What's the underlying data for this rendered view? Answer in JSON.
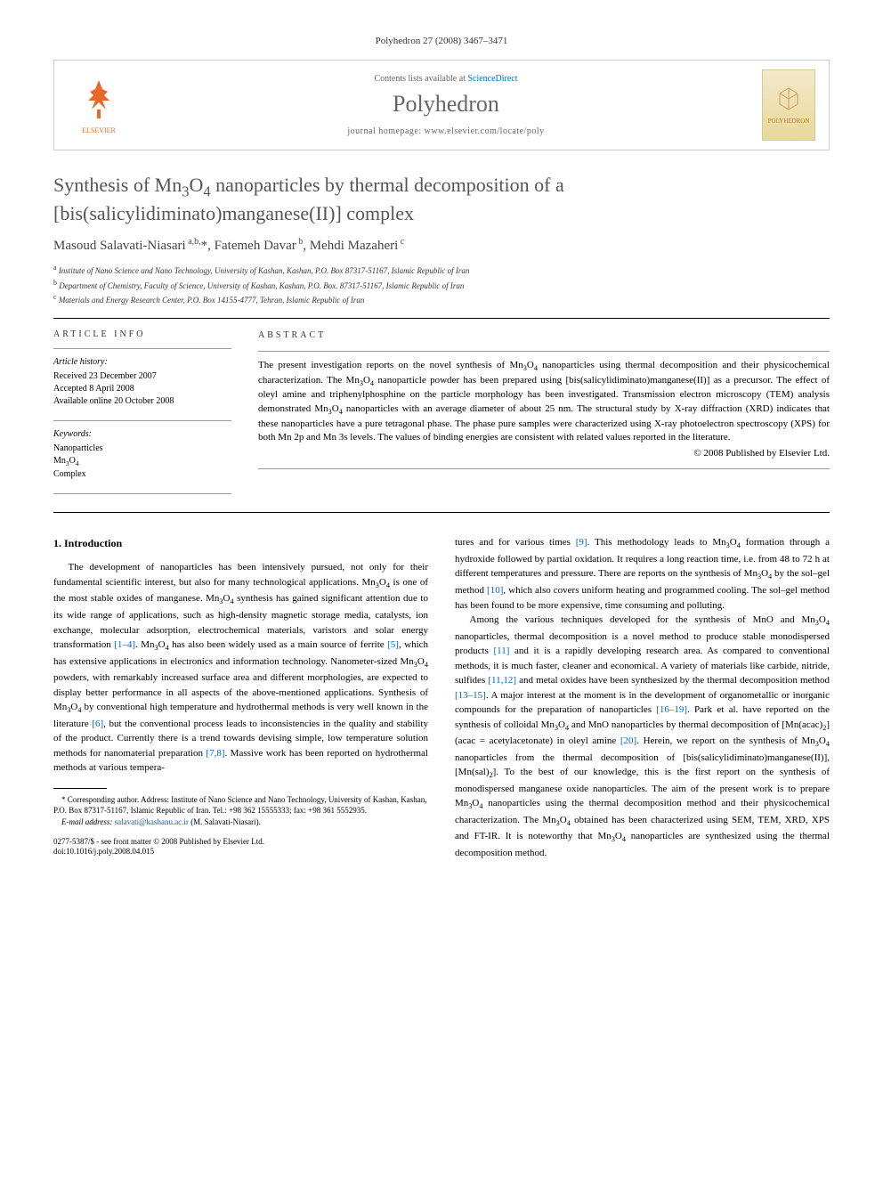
{
  "journal_ref": "Polyhedron 27 (2008) 3467–3471",
  "header": {
    "contents_prefix": "Contents lists available at ",
    "contents_link": "ScienceDirect",
    "journal_title": "Polyhedron",
    "homepage_prefix": "journal homepage: ",
    "homepage_url": "www.elsevier.com/locate/poly",
    "elsevier_label": "ELSEVIER",
    "cover_label": "POLYHEDRON"
  },
  "title": "Synthesis of Mn₃O₄ nanoparticles by thermal decomposition of a [bis(salicylidiminato)manganese(II)] complex",
  "authors_html": "Masoud Salavati-Niasari <sup>a,b,*</sup>, Fatemeh Davar <sup>b</sup>, Mehdi Mazaheri <sup>c</sup>",
  "affiliations": [
    "a|Institute of Nano Science and Nano Technology, University of Kashan, Kashan, P.O. Box 87317-51167, Islamic Republic of Iran",
    "b|Department of Chemistry, Faculty of Science, University of Kashan, Kashan, P.O. Box. 87317-51167, Islamic Republic of Iran",
    "c|Materials and Energy Research Center, P.O. Box 14155-4777, Tehran, Islamic Republic of Iran"
  ],
  "article_info": {
    "heading": "ARTICLE INFO",
    "history_label": "Article history:",
    "history": [
      "Received 23 December 2007",
      "Accepted 8 April 2008",
      "Available online 20 October 2008"
    ],
    "keywords_label": "Keywords:",
    "keywords": [
      "Nanoparticles",
      "Mn₃O₄",
      "Complex"
    ]
  },
  "abstract": {
    "heading": "ABSTRACT",
    "text": "The present investigation reports on the novel synthesis of Mn₃O₄ nanoparticles using thermal decomposition and their physicochemical characterization. The Mn₃O₄ nanoparticle powder has been prepared using [bis(salicylidiminato)manganese(II)] as a precursor. The effect of oleyl amine and triphenylphosphine on the particle morphology has been investigated. Transmission electron microscopy (TEM) analysis demonstrated Mn₃O₄ nanoparticles with an average diameter of about 25 nm. The structural study by X-ray diffraction (XRD) indicates that these nanoparticles have a pure tetragonal phase. The phase pure samples were characterized using X-ray photoelectron spectroscopy (XPS) for both Mn 2p and Mn 3s levels. The values of binding energies are consistent with related values reported in the literature.",
    "copyright": "© 2008 Published by Elsevier Ltd."
  },
  "section1": {
    "heading": "1. Introduction",
    "p1": "The development of nanoparticles has been intensively pursued, not only for their fundamental scientific interest, but also for many technological applications. Mn₃O₄ is one of the most stable oxides of manganese. Mn₃O₄ synthesis has gained significant attention due to its wide range of applications, such as high-density magnetic storage media, catalysts, ion exchange, molecular adsorption, electrochemical materials, varistors and solar energy transformation [1–4]. Mn₃O₄ has also been widely used as a main source of ferrite [5], which has extensive applications in electronics and information technology. Nanometer-sized Mn₃O₄ powders, with remarkably increased surface area and different morphologies, are expected to display better performance in all aspects of the above-mentioned applications. Synthesis of Mn₃O₄ by conventional high temperature and hydrothermal methods is very well known in the literature [6], but the conventional process leads to inconsistencies in the quality and stability of the product. Currently there is a trend towards devising simple, low temperature solution methods for nanomaterial preparation [7,8]. Massive work has been reported on hydrothermal methods at various tempera",
    "p1_cont": "tures and for various times [9]. This methodology leads to Mn₃O₄ formation through a hydroxide followed by partial oxidation. It requires a long reaction time, i.e. from 48 to 72 h at different temperatures and pressure. There are reports on the synthesis of Mn₃O₄ by the sol–gel method [10], which also covers uniform heating and programmed cooling. The sol–gel method has been found to be more expensive, time consuming and polluting.",
    "p2": "Among the various techniques developed for the synthesis of MnO and Mn₃O₄ nanoparticles, thermal decomposition is a novel method to produce stable monodispersed products [11] and it is a rapidly developing research area. As compared to conventional methods, it is much faster, cleaner and economical. A variety of materials like carbide, nitride, sulfides [11,12] and metal oxides have been synthesized by the thermal decomposition method [13–15]. A major interest at the moment is in the development of organometallic or inorganic compounds for the preparation of nanoparticles [16–19]. Park et al. have reported on the synthesis of colloidal Mn₃O₄ and MnO nanoparticles by thermal decomposition of [Mn(acac)₂] (acac = acetylacetonate) in oleyl amine [20]. Herein, we report on the synthesis of Mn₃O₄ nanoparticles from the thermal decomposition of [bis(salicylidiminato)manganese(II)], [Mn(sal)₂]. To the best of our knowledge, this is the first report on the synthesis of monodispersed manganese oxide nanoparticles. The aim of the present work is to prepare Mn₃O₄ nanoparticles using the thermal decomposition method and their physicochemical characterization. The Mn₃O₄ obtained has been characterized using SEM, TEM, XRD, XPS and FT-IR. It is noteworthy that Mn₃O₄ nanoparticles are synthesized using the thermal decomposition method."
  },
  "footnotes": {
    "corresponding": "* Corresponding author. Address: Institute of Nano Science and Nano Technology, University of Kashan, Kashan, P.O. Box 87317-51167, Islamic Republic of Iran. Tel.: +98 362 15555333; fax: +98 361 5552935.",
    "email_label": "E-mail address: ",
    "email": "salavati@kashanu.ac.ir",
    "email_suffix": " (M. Salavati-Niasari)."
  },
  "doi": {
    "line1": "0277-5387/$ - see front matter © 2008 Published by Elsevier Ltd.",
    "line2": "doi:10.1016/j.poly.2008.04.015"
  },
  "refs": {
    "r1_4": "[1–4]",
    "r5": "[5]",
    "r6": "[6]",
    "r7_8": "[7,8]",
    "r9": "[9]",
    "r10": "[10]",
    "r11": "[11]",
    "r11_12": "[11,12]",
    "r13_15": "[13–15]",
    "r16_19": "[16–19]",
    "r20": "[20]"
  }
}
